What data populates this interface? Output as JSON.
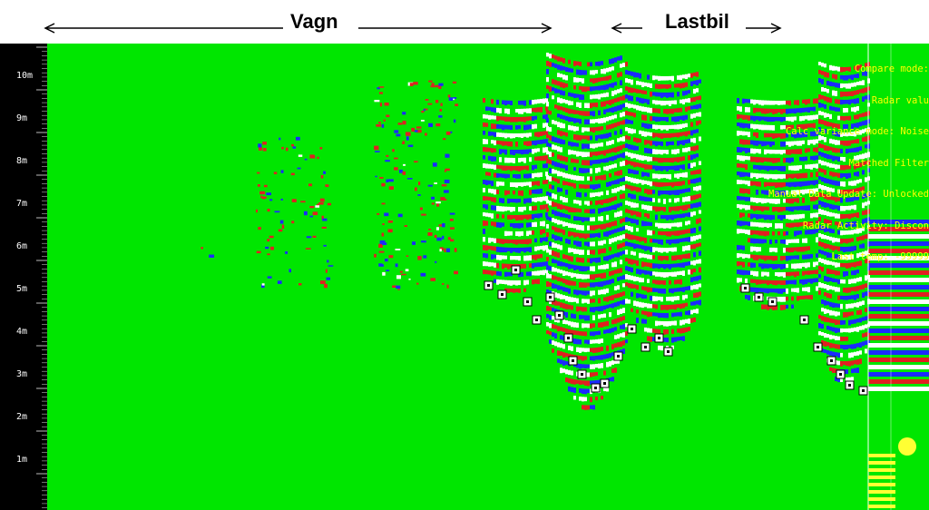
{
  "header": {
    "left_label": "Vagn",
    "right_label": "Lastbil"
  },
  "axis": {
    "ticks": [
      "10m",
      "9m",
      "8m",
      "7m",
      "6m",
      "5m",
      "4m",
      "3m",
      "2m",
      "1m"
    ]
  },
  "status": {
    "lines": [
      "Compare mode:",
      "Radar valu",
      "Calc variance mode: Noise",
      "Matched Filter",
      "Manual Data Update: Unlocked",
      "Radar Activity: Discon",
      "Last temp: -99999"
    ]
  },
  "colors": {
    "background": "#00e600",
    "axis": "#000000",
    "red_band": "#e02020",
    "blue_band": "#1a2aff",
    "white_band": "#ffffff",
    "status_text": "#ffff00",
    "indicator": "#ffff33"
  }
}
